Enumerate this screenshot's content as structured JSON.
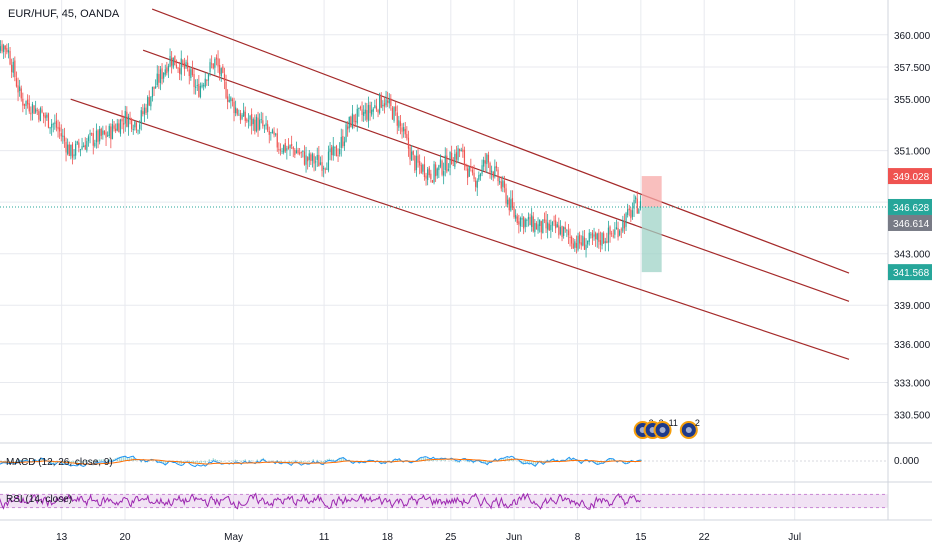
{
  "chart_data": {
    "type": "candlestick",
    "title": "EUR/HUF, 45, OANDA",
    "price_axis": {
      "ylim": [
        328.3,
        362.7
      ],
      "ticks": [
        "360.000",
        "357.500",
        "355.000",
        "351.000",
        "347.000",
        "343.000",
        "339.000",
        "336.000",
        "333.000",
        "330.500"
      ],
      "tick_values": [
        360.0,
        357.5,
        355.0,
        351.0,
        347.0,
        343.0,
        339.0,
        336.0,
        333.0,
        330.5
      ]
    },
    "date_axis": {
      "labels": [
        "13",
        "20",
        "May",
        "11",
        "18",
        "25",
        "Jun",
        "8",
        "15",
        "22",
        "Jul"
      ],
      "label_days": [
        13,
        20,
        32,
        42,
        49,
        56,
        63,
        70,
        77,
        84,
        94
      ]
    },
    "price_series": {
      "day_start": 5,
      "day_end": 77.1,
      "waypoints": [
        [
          5,
          359.6
        ],
        [
          7,
          359.0
        ],
        [
          8.5,
          355.0
        ],
        [
          10,
          354.3
        ],
        [
          12.5,
          352.8
        ],
        [
          14,
          350.8
        ],
        [
          16,
          351.8
        ],
        [
          18,
          352.2
        ],
        [
          20,
          353.6
        ],
        [
          21.5,
          353.1
        ],
        [
          23,
          355.6
        ],
        [
          25,
          358.2
        ],
        [
          27,
          357.1
        ],
        [
          28,
          355.6
        ],
        [
          29,
          357.0
        ],
        [
          30,
          358.0
        ],
        [
          31.5,
          355.0
        ],
        [
          33,
          353.5
        ],
        [
          35,
          353.0
        ],
        [
          37,
          351.4
        ],
        [
          39,
          351.0
        ],
        [
          40,
          350.3
        ],
        [
          42,
          350.1
        ],
        [
          43.5,
          351.0
        ],
        [
          45,
          353.4
        ],
        [
          47,
          354.0
        ],
        [
          48.5,
          355.0
        ],
        [
          50,
          353.6
        ],
        [
          52,
          350.0
        ],
        [
          54,
          349.2
        ],
        [
          55.5,
          350.0
        ],
        [
          57,
          351.0
        ],
        [
          58.5,
          348.5
        ],
        [
          60,
          350.3
        ],
        [
          61.5,
          348.4
        ],
        [
          63,
          346.0
        ],
        [
          64.5,
          345.4
        ],
        [
          66,
          345.0
        ],
        [
          68,
          344.9
        ],
        [
          70,
          343.8
        ],
        [
          72,
          344.0
        ],
        [
          74,
          344.6
        ],
        [
          75.5,
          345.8
        ],
        [
          76.5,
          346.8
        ],
        [
          77.1,
          346.6
        ]
      ]
    },
    "channel_lines": [
      {
        "start": [
          23,
          362.0
        ],
        "end": [
          100,
          341.5
        ],
        "color": "#a52a2a"
      },
      {
        "start": [
          22,
          358.8
        ],
        "end": [
          100,
          339.3
        ],
        "color": "#a52a2a"
      },
      {
        "start": [
          14,
          355.0
        ],
        "end": [
          100,
          334.8
        ],
        "color": "#a52a2a"
      }
    ],
    "position_tool": {
      "day_start": 77.1,
      "day_end": 79.3,
      "entry": 346.628,
      "stop": 349.028,
      "target": 341.568,
      "stop_color": "#f7a9a8",
      "target_color": "#9fd3c7"
    },
    "price_labels": [
      {
        "text": "349.028",
        "value": 349.028,
        "color": "#ef5350"
      },
      {
        "text": "346.628",
        "value": 346.628,
        "color": "#26a69a"
      },
      {
        "text": "346.614",
        "value": 346.614,
        "color": "#787b86"
      },
      {
        "text": "341.568",
        "value": 341.568,
        "color": "#26a69a"
      }
    ],
    "current_price_line": {
      "value": 346.628,
      "color": "#26a69a"
    },
    "event_badges": [
      {
        "day": 77.2,
        "count": "2"
      },
      {
        "day": 78.3,
        "count": "3"
      },
      {
        "day": 79.4,
        "count": "11"
      },
      {
        "day": 82.3,
        "count": "2"
      }
    ],
    "macd": {
      "label": "MACD (12, 26, close, 9)",
      "tick": "0.000",
      "macd_color": "#2196f3",
      "signal_color": "#ff6d00",
      "hist_color": "#26a69a"
    },
    "rsi": {
      "label": "RSI (14, close)",
      "color": "#9c27b0",
      "band_upper": 70,
      "band_lower": 30,
      "band_color": "#e1bee7"
    },
    "colors": {
      "up": "#26a69a",
      "down": "#ef5350",
      "grid": "#e8eaef",
      "border": "#d1d4dc",
      "channel": "#a52a2a"
    },
    "grid": true
  }
}
